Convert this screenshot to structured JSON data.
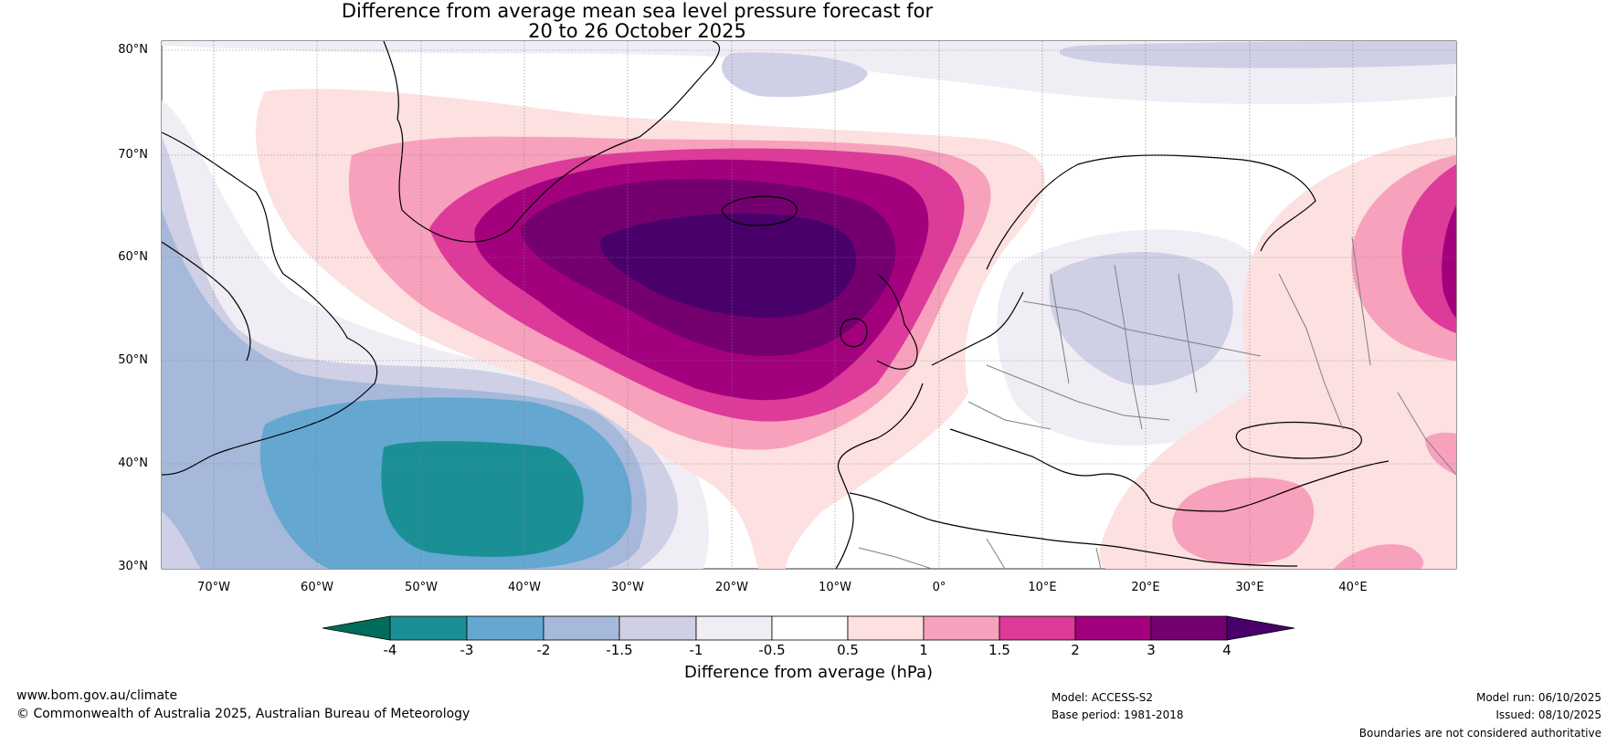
{
  "title": {
    "line1": "Difference from average mean sea level pressure forecast for",
    "line2": "20 to 26 October 2025"
  },
  "map": {
    "lat_labels": [
      "80°N",
      "70°N",
      "60°N",
      "50°N",
      "40°N",
      "30°N"
    ],
    "lon_labels": [
      "70°W",
      "60°W",
      "50°W",
      "40°W",
      "30°W",
      "20°W",
      "10°W",
      "0°",
      "10°E",
      "20°E",
      "30°E",
      "40°E"
    ],
    "extent": {
      "lon_min": -75,
      "lon_max": 50,
      "lat_min": 30,
      "lat_max": 81
    }
  },
  "colorbar": {
    "label": "Difference from average (hPa)",
    "ticks": [
      "-4",
      "-3",
      "-2",
      "-1.5",
      "-1",
      "-0.5",
      "0.5",
      "1",
      "1.5",
      "2",
      "3",
      "4"
    ],
    "colors": [
      "#006d5b",
      "#1a9096",
      "#64a7d0",
      "#a6b9da",
      "#cfd0e6",
      "#f1edf5",
      "#ffffff",
      "#fde0e0",
      "#f7a1bc",
      "#dd3a9a",
      "#a3007e",
      "#74006f",
      "#49006a"
    ]
  },
  "footer": {
    "website": "www.bom.gov.au/climate",
    "copyright": "© Commonwealth of Australia 2025, Australian Bureau of Meteorology",
    "model": "Model: ACCESS-S2",
    "base_period": "Base period: 1981-2018",
    "model_run": "Model run: 06/10/2025",
    "issued": "Issued: 08/10/2025",
    "disclaimer": "Boundaries are not considered authoritative"
  }
}
